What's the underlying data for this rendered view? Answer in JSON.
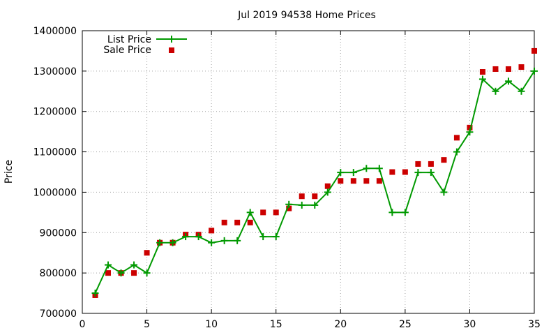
{
  "chart_data": {
    "type": "line",
    "title": "Jul 2019 94538 Home Prices",
    "xlabel": "",
    "ylabel": "Price",
    "xlim": [
      0,
      35
    ],
    "ylim": [
      700000,
      1400000
    ],
    "x_ticks": [
      0,
      5,
      10,
      15,
      20,
      25,
      30,
      35
    ],
    "y_ticks": [
      700000,
      800000,
      900000,
      1000000,
      1100000,
      1200000,
      1300000,
      1400000
    ],
    "grid": true,
    "legend_position": "top-left",
    "series": [
      {
        "name": "List Price",
        "style": "line-plus",
        "color": "#009900",
        "points": [
          [
            1,
            750000
          ],
          [
            2,
            820000
          ],
          [
            3,
            800000
          ],
          [
            4,
            820000
          ],
          [
            5,
            800000
          ],
          [
            6,
            875000
          ],
          [
            7,
            875000
          ],
          [
            8,
            890000
          ],
          [
            9,
            890000
          ],
          [
            10,
            875000
          ],
          [
            11,
            880000
          ],
          [
            12,
            880000
          ],
          [
            13,
            950000
          ],
          [
            14,
            890000
          ],
          [
            15,
            890000
          ],
          [
            16,
            970000
          ],
          [
            17,
            968000
          ],
          [
            18,
            968000
          ],
          [
            19,
            1000000
          ],
          [
            20,
            1049000
          ],
          [
            21,
            1049000
          ],
          [
            22,
            1059000
          ],
          [
            23,
            1059000
          ],
          [
            24,
            950000
          ],
          [
            25,
            950000
          ],
          [
            26,
            1049000
          ],
          [
            27,
            1049000
          ],
          [
            28,
            1000000
          ],
          [
            29,
            1100000
          ],
          [
            30,
            1149000
          ],
          [
            31,
            1280000
          ],
          [
            32,
            1250000
          ],
          [
            33,
            1275000
          ],
          [
            34,
            1250000
          ],
          [
            35,
            1300000
          ]
        ]
      },
      {
        "name": "Sale Price",
        "style": "square-marker",
        "color": "#cc0000",
        "points": [
          [
            1,
            745000
          ],
          [
            2,
            800000
          ],
          [
            3,
            800000
          ],
          [
            4,
            800000
          ],
          [
            5,
            850000
          ],
          [
            6,
            875000
          ],
          [
            7,
            875000
          ],
          [
            8,
            895000
          ],
          [
            9,
            895000
          ],
          [
            10,
            905000
          ],
          [
            11,
            925000
          ],
          [
            12,
            925000
          ],
          [
            13,
            925000
          ],
          [
            14,
            950000
          ],
          [
            15,
            950000
          ],
          [
            16,
            960000
          ],
          [
            17,
            990000
          ],
          [
            18,
            990000
          ],
          [
            19,
            1015000
          ],
          [
            20,
            1028000
          ],
          [
            21,
            1028000
          ],
          [
            22,
            1028000
          ],
          [
            23,
            1028000
          ],
          [
            24,
            1050000
          ],
          [
            25,
            1050000
          ],
          [
            26,
            1070000
          ],
          [
            27,
            1070000
          ],
          [
            28,
            1080000
          ],
          [
            29,
            1135000
          ],
          [
            30,
            1160000
          ],
          [
            31,
            1298000
          ],
          [
            32,
            1305000
          ],
          [
            33,
            1305000
          ],
          [
            34,
            1310000
          ],
          [
            35,
            1350000
          ]
        ]
      }
    ]
  }
}
